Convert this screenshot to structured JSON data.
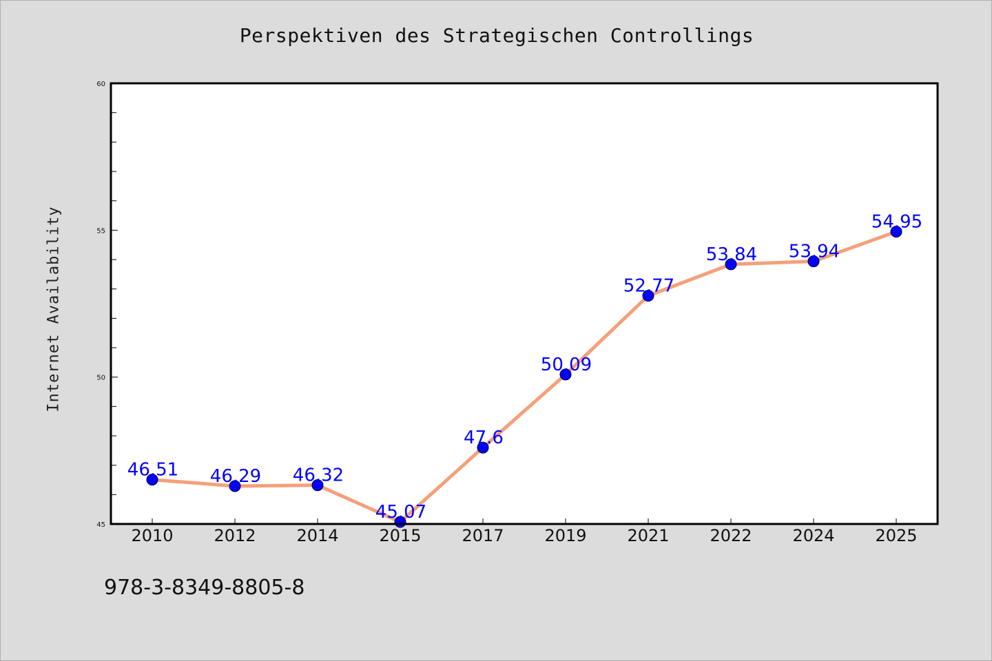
{
  "chart_data": {
    "type": "line",
    "title": "Perspektiven des Strategischen Controllings",
    "xlabel": "",
    "ylabel": "Internet Availability",
    "x": [
      "2010",
      "2012",
      "2014",
      "2015",
      "2017",
      "2019",
      "2021",
      "2022",
      "2024",
      "2025"
    ],
    "values": [
      46.51,
      46.29,
      46.32,
      45.07,
      47.6,
      50.09,
      52.77,
      53.84,
      53.94,
      54.95
    ],
    "data_labels": [
      "46.51",
      "46.29",
      "46.32",
      "45.07",
      "47.6",
      "50.09",
      "52.77",
      "53.84",
      "53.94",
      "54.95"
    ],
    "ylim": [
      45,
      60
    ],
    "y_ticks": [
      45,
      50,
      55,
      60
    ],
    "grid": false,
    "line_color": "#f4a07a",
    "marker_color": "#0000ff",
    "label_color": "#0000ff"
  },
  "footnote": "978-3-8349-8805-8"
}
